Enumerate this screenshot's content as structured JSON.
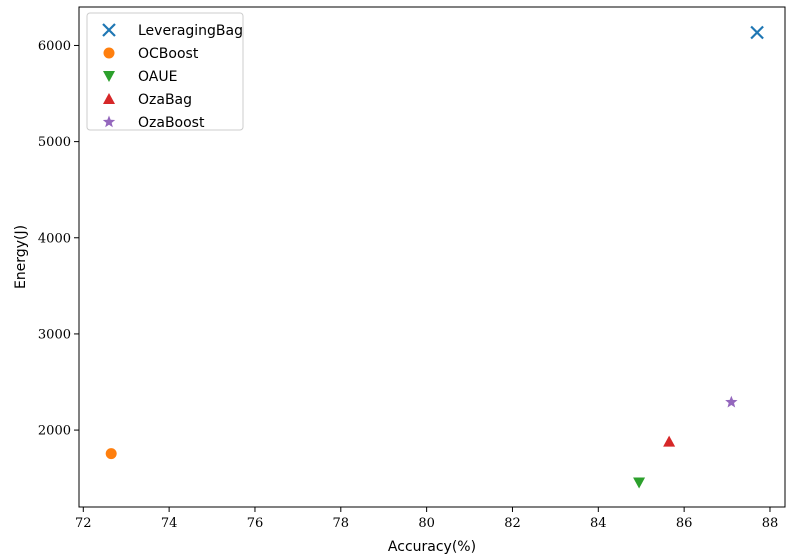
{
  "chart_data": {
    "type": "scatter",
    "title": "",
    "xlabel": "Accuracy(%)",
    "ylabel": "Energy(J)",
    "xlim": [
      71.9,
      88.35
    ],
    "ylim": [
      1200,
      6400
    ],
    "xticks": [
      72,
      74,
      76,
      78,
      80,
      82,
      84,
      86,
      88
    ],
    "yticks": [
      2000,
      3000,
      4000,
      5000,
      6000
    ],
    "grid": false,
    "legend_position": "top-left",
    "series": [
      {
        "name": "LeveragingBag",
        "marker": "x",
        "color": "#1f77b4",
        "x": [
          87.7
        ],
        "y": [
          6135
        ]
      },
      {
        "name": "OCBoost",
        "marker": "circle",
        "color": "#ff7f0e",
        "x": [
          72.65
        ],
        "y": [
          1755
        ]
      },
      {
        "name": "OAUE",
        "marker": "triangle-down",
        "color": "#2ca02c",
        "x": [
          84.95
        ],
        "y": [
          1455
        ]
      },
      {
        "name": "OzaBag",
        "marker": "triangle-up",
        "color": "#d62728",
        "x": [
          85.65
        ],
        "y": [
          1880
        ]
      },
      {
        "name": "OzaBoost",
        "marker": "star",
        "color": "#9467bd",
        "x": [
          87.1
        ],
        "y": [
          2290
        ]
      }
    ]
  }
}
